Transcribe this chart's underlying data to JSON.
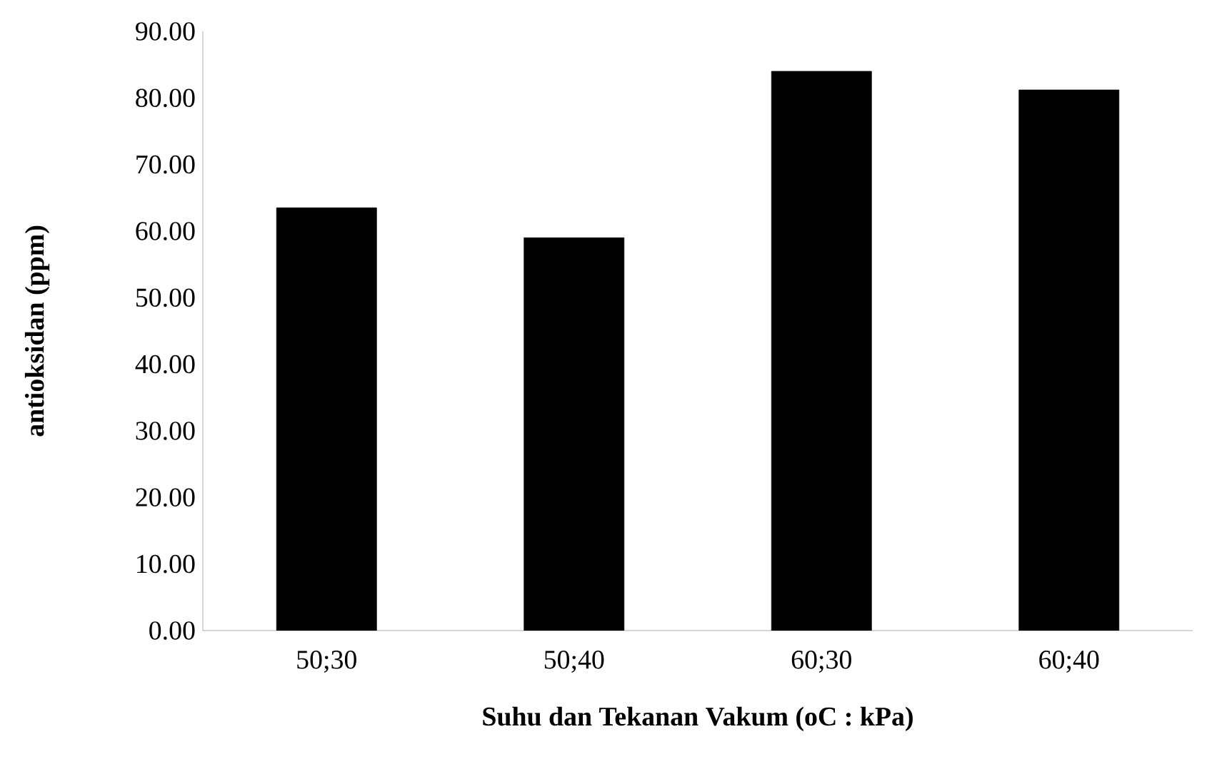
{
  "chart_data": {
    "type": "bar",
    "xlabel": "Suhu dan Tekanan Vakum (oC : kPa)",
    "ylabel": "antioksidan (ppm)",
    "categories": [
      "50;30",
      "50;40",
      "60;30",
      "60;40"
    ],
    "values": [
      63.5,
      59.0,
      84.0,
      81.2
    ],
    "color": "#000000",
    "ylim": [
      0,
      90
    ],
    "yticks": [
      {
        "value": 0,
        "label": "0.00"
      },
      {
        "value": 10,
        "label": "10.00"
      },
      {
        "value": 20,
        "label": "20.00"
      },
      {
        "value": 30,
        "label": "30.00"
      },
      {
        "value": 40,
        "label": "40.00"
      },
      {
        "value": 50,
        "label": "50.00"
      },
      {
        "value": 60,
        "label": "60.00"
      },
      {
        "value": 70,
        "label": "70.00"
      },
      {
        "value": 80,
        "label": "80.00"
      },
      {
        "value": 90,
        "label": "90.00"
      }
    ]
  }
}
